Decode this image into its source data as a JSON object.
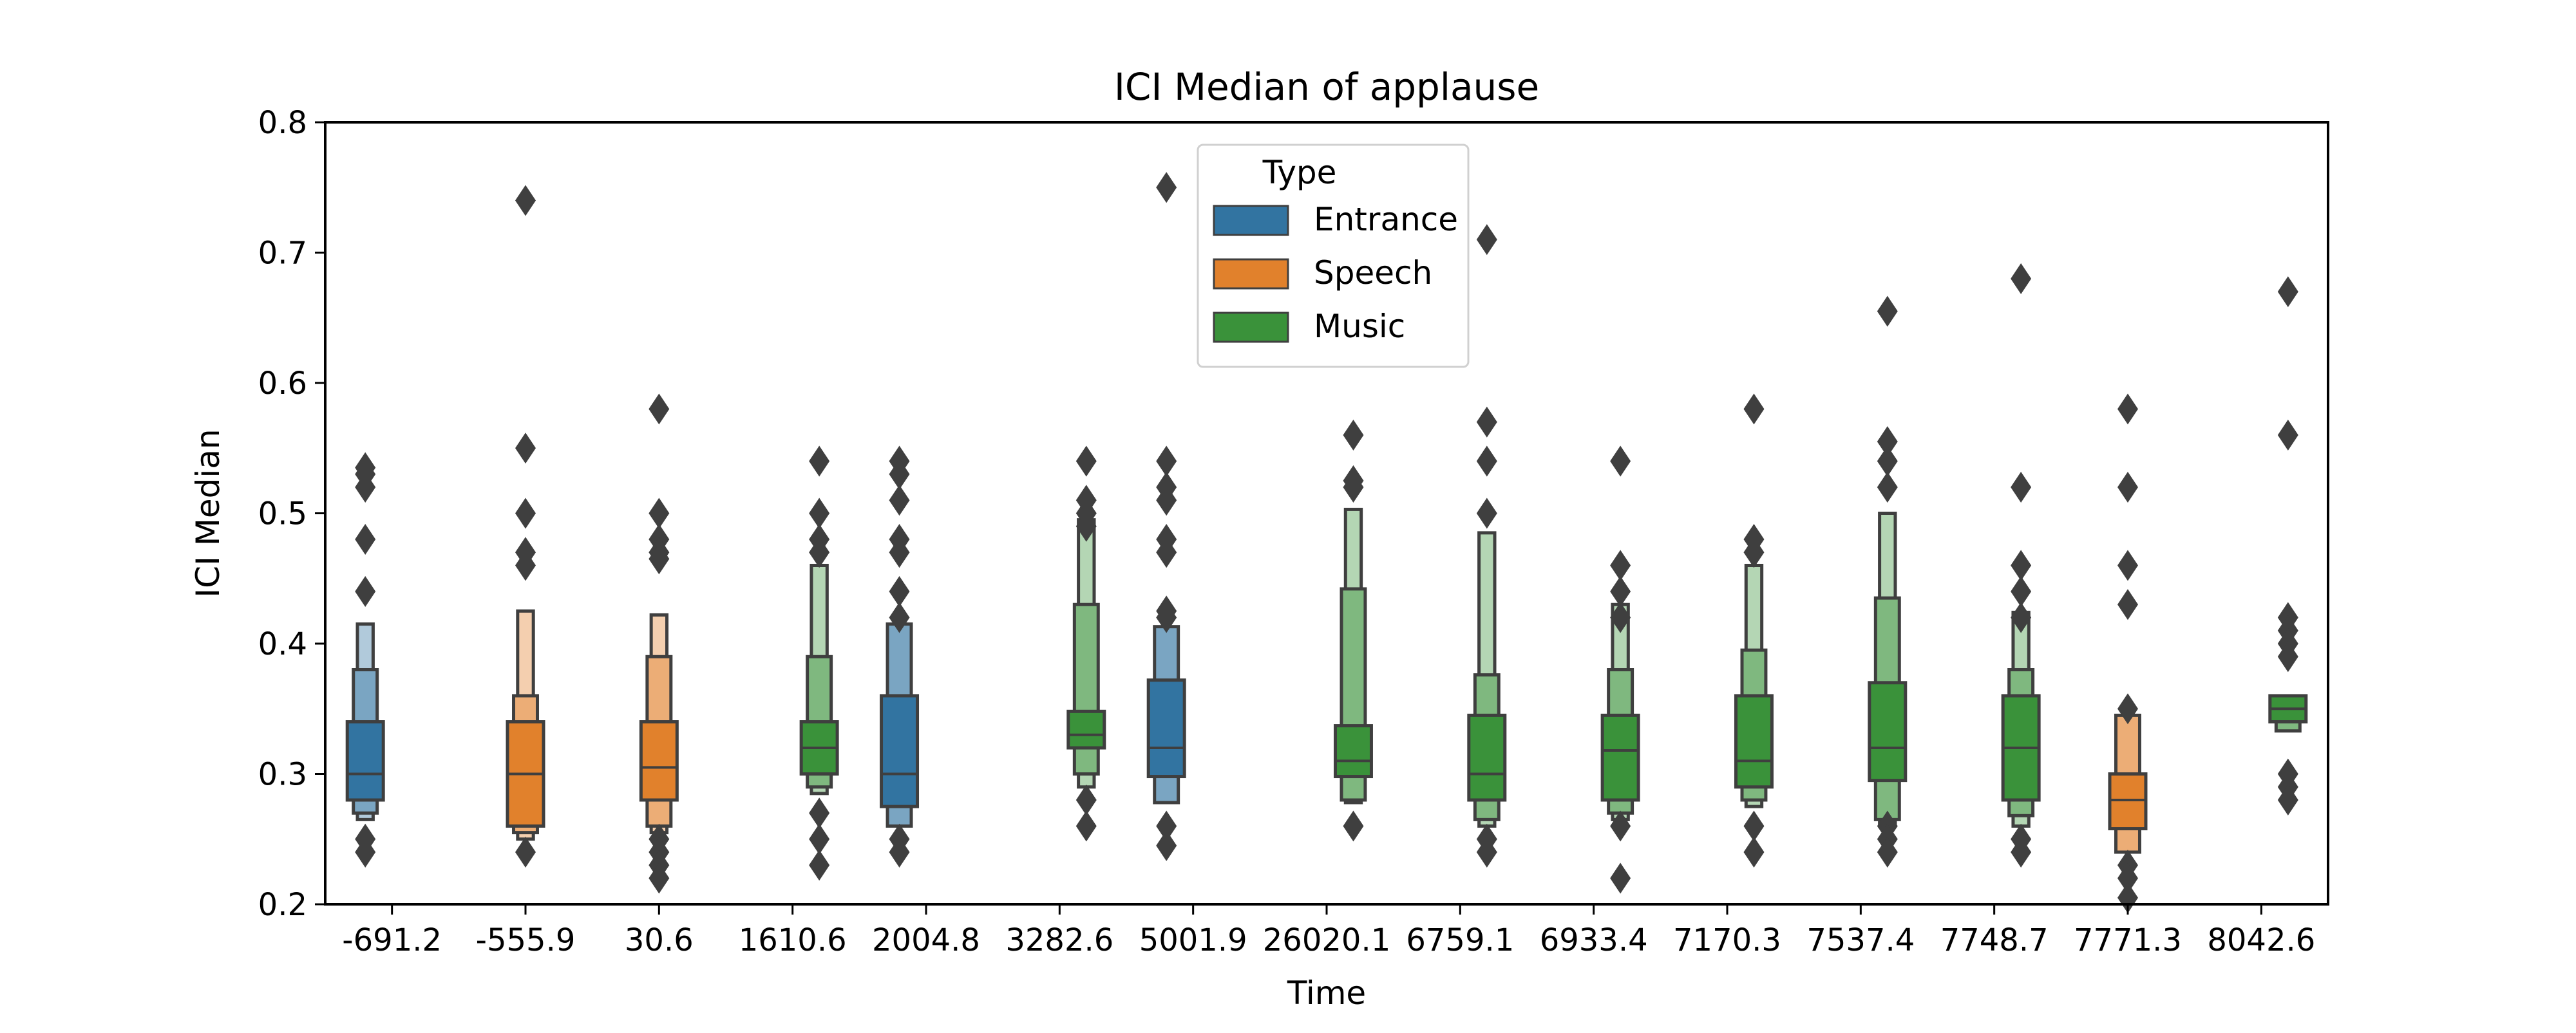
{
  "chart_data": {
    "type": "boxenplot",
    "title": "ICI Median of applause",
    "xlabel": "Time",
    "ylabel": "ICI Median",
    "ylim": [
      0.2,
      0.8
    ],
    "yticks": [
      "0.2",
      "0.3",
      "0.4",
      "0.5",
      "0.6",
      "0.7",
      "0.8"
    ],
    "categories": [
      "-691.2",
      "-555.9",
      "30.6",
      "1610.6",
      "2004.8",
      "3282.6",
      "5001.9",
      "26020.1",
      "6759.1",
      "6933.4",
      "7170.3",
      "7537.4",
      "7748.7",
      "7771.3",
      "8042.6"
    ],
    "grid": false,
    "legend": {
      "title": "Type",
      "position": "upper center",
      "entries": [
        {
          "label": "Entrance",
          "color": "#3274a1"
        },
        {
          "label": "Speech",
          "color": "#e1812c"
        },
        {
          "label": "Music",
          "color": "#3a923a"
        }
      ]
    },
    "series": [
      {
        "category": "-691.2",
        "type": "Entrance",
        "offset": -0.2,
        "median": 0.3,
        "boxes": [
          [
            0.28,
            0.34
          ],
          [
            0.27,
            0.38
          ],
          [
            0.265,
            0.415
          ]
        ],
        "outliers": [
          0.535,
          0.53,
          0.52,
          0.48,
          0.44,
          0.25,
          0.24
        ]
      },
      {
        "category": "-555.9",
        "type": "Speech",
        "offset": 0,
        "median": 0.3,
        "boxes": [
          [
            0.26,
            0.34
          ],
          [
            0.255,
            0.36
          ],
          [
            0.25,
            0.425
          ]
        ],
        "outliers": [
          0.74,
          0.55,
          0.5,
          0.47,
          0.46,
          0.24
        ]
      },
      {
        "category": "30.6",
        "type": "Speech",
        "offset": 0,
        "median": 0.305,
        "boxes": [
          [
            0.28,
            0.34
          ],
          [
            0.26,
            0.39
          ],
          [
            0.255,
            0.422
          ]
        ],
        "outliers": [
          0.58,
          0.5,
          0.48,
          0.47,
          0.465,
          0.25,
          0.24,
          0.23,
          0.22
        ]
      },
      {
        "category": "1610.6",
        "type": "Music",
        "offset": 0.2,
        "median": 0.32,
        "boxes": [
          [
            0.3,
            0.34
          ],
          [
            0.29,
            0.39
          ],
          [
            0.285,
            0.46
          ]
        ],
        "outliers": [
          0.54,
          0.5,
          0.48,
          0.47,
          0.27,
          0.25,
          0.23
        ]
      },
      {
        "category": "2004.8",
        "type": "Entrance",
        "offset": -0.2,
        "median": 0.3,
        "boxes": [
          [
            0.275,
            0.36
          ],
          [
            0.26,
            0.415
          ]
        ],
        "outliers": [
          0.54,
          0.53,
          0.51,
          0.48,
          0.47,
          0.44,
          0.42,
          0.25,
          0.24
        ]
      },
      {
        "category": "3282.6",
        "type": "Music",
        "offset": 0.2,
        "median": 0.33,
        "boxes": [
          [
            0.32,
            0.348
          ],
          [
            0.3,
            0.43
          ],
          [
            0.29,
            0.495
          ]
        ],
        "outliers": [
          0.54,
          0.51,
          0.5,
          0.49,
          0.28,
          0.26
        ]
      },
      {
        "category": "5001.9",
        "type": "Entrance",
        "offset": -0.2,
        "median": 0.32,
        "boxes": [
          [
            0.298,
            0.372
          ],
          [
            0.278,
            0.413
          ]
        ],
        "outliers": [
          0.75,
          0.54,
          0.52,
          0.51,
          0.48,
          0.47,
          0.425,
          0.42,
          0.26,
          0.245
        ]
      },
      {
        "category": "26020.1",
        "type": "Music",
        "offset": 0.2,
        "median": 0.31,
        "boxes": [
          [
            0.298,
            0.337
          ],
          [
            0.28,
            0.442
          ],
          [
            0.278,
            0.503
          ]
        ],
        "outliers": [
          0.56,
          0.525,
          0.52,
          0.26
        ]
      },
      {
        "category": "6759.1",
        "type": "Music",
        "offset": 0.2,
        "median": 0.3,
        "boxes": [
          [
            0.28,
            0.345
          ],
          [
            0.265,
            0.376
          ],
          [
            0.26,
            0.485
          ]
        ],
        "outliers": [
          0.71,
          0.57,
          0.54,
          0.5,
          0.25,
          0.24
        ]
      },
      {
        "category": "6933.4",
        "type": "Music",
        "offset": 0.2,
        "median": 0.318,
        "boxes": [
          [
            0.28,
            0.345
          ],
          [
            0.27,
            0.38
          ],
          [
            0.265,
            0.43
          ]
        ],
        "outliers": [
          0.54,
          0.46,
          0.44,
          0.42,
          0.26,
          0.22
        ]
      },
      {
        "category": "7170.3",
        "type": "Music",
        "offset": 0.2,
        "median": 0.31,
        "boxes": [
          [
            0.29,
            0.36
          ],
          [
            0.28,
            0.395
          ],
          [
            0.275,
            0.46
          ]
        ],
        "outliers": [
          0.58,
          0.48,
          0.47,
          0.26,
          0.24
        ]
      },
      {
        "category": "7537.4",
        "type": "Music",
        "offset": 0.2,
        "median": 0.32,
        "boxes": [
          [
            0.295,
            0.37
          ],
          [
            0.265,
            0.435
          ],
          [
            0.26,
            0.5
          ]
        ],
        "outliers": [
          0.655,
          0.555,
          0.54,
          0.52,
          0.26,
          0.25,
          0.24
        ]
      },
      {
        "category": "7748.7",
        "type": "Music",
        "offset": 0.2,
        "median": 0.32,
        "boxes": [
          [
            0.28,
            0.36
          ],
          [
            0.268,
            0.38
          ],
          [
            0.26,
            0.424
          ]
        ],
        "outliers": [
          0.68,
          0.52,
          0.46,
          0.44,
          0.42,
          0.25,
          0.24
        ]
      },
      {
        "category": "7771.3",
        "type": "Speech",
        "offset": 0,
        "median": 0.28,
        "boxes": [
          [
            0.258,
            0.3
          ],
          [
            0.24,
            0.345
          ]
        ],
        "outliers": [
          0.58,
          0.52,
          0.46,
          0.43,
          0.35,
          0.23,
          0.22,
          0.205
        ]
      },
      {
        "category": "8042.6",
        "type": "Music",
        "offset": 0.2,
        "median": 0.35,
        "boxes": [
          [
            0.34,
            0.36
          ],
          [
            0.333,
            0.36
          ]
        ],
        "outliers": [
          0.67,
          0.56,
          0.42,
          0.41,
          0.4,
          0.39,
          0.3,
          0.29,
          0.28
        ]
      }
    ]
  }
}
